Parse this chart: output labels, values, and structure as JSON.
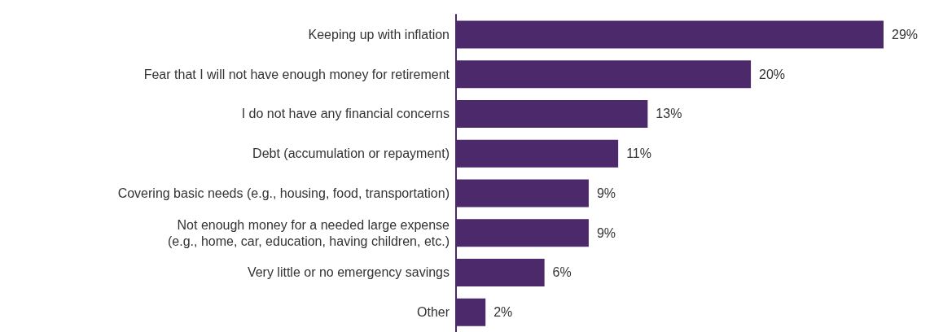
{
  "chart_data": {
    "type": "bar",
    "orientation": "horizontal",
    "categories": [
      "Keeping up with inflation",
      "Fear that I will not have enough money for retirement",
      "I do not have any financial concerns",
      "Debt (accumulation or repayment)",
      "Covering basic needs (e.g., housing, food, transportation)",
      "Not enough money for a needed large expense\n(e.g., home, car, education, having children, etc.)",
      "Very little or no emergency savings",
      "Other"
    ],
    "values": [
      29,
      20,
      13,
      11,
      9,
      9,
      6,
      2
    ],
    "value_labels": [
      "29%",
      "20%",
      "13%",
      "11%",
      "9%",
      "9%",
      "6%",
      "2%"
    ],
    "color": "#4b296b"
  }
}
